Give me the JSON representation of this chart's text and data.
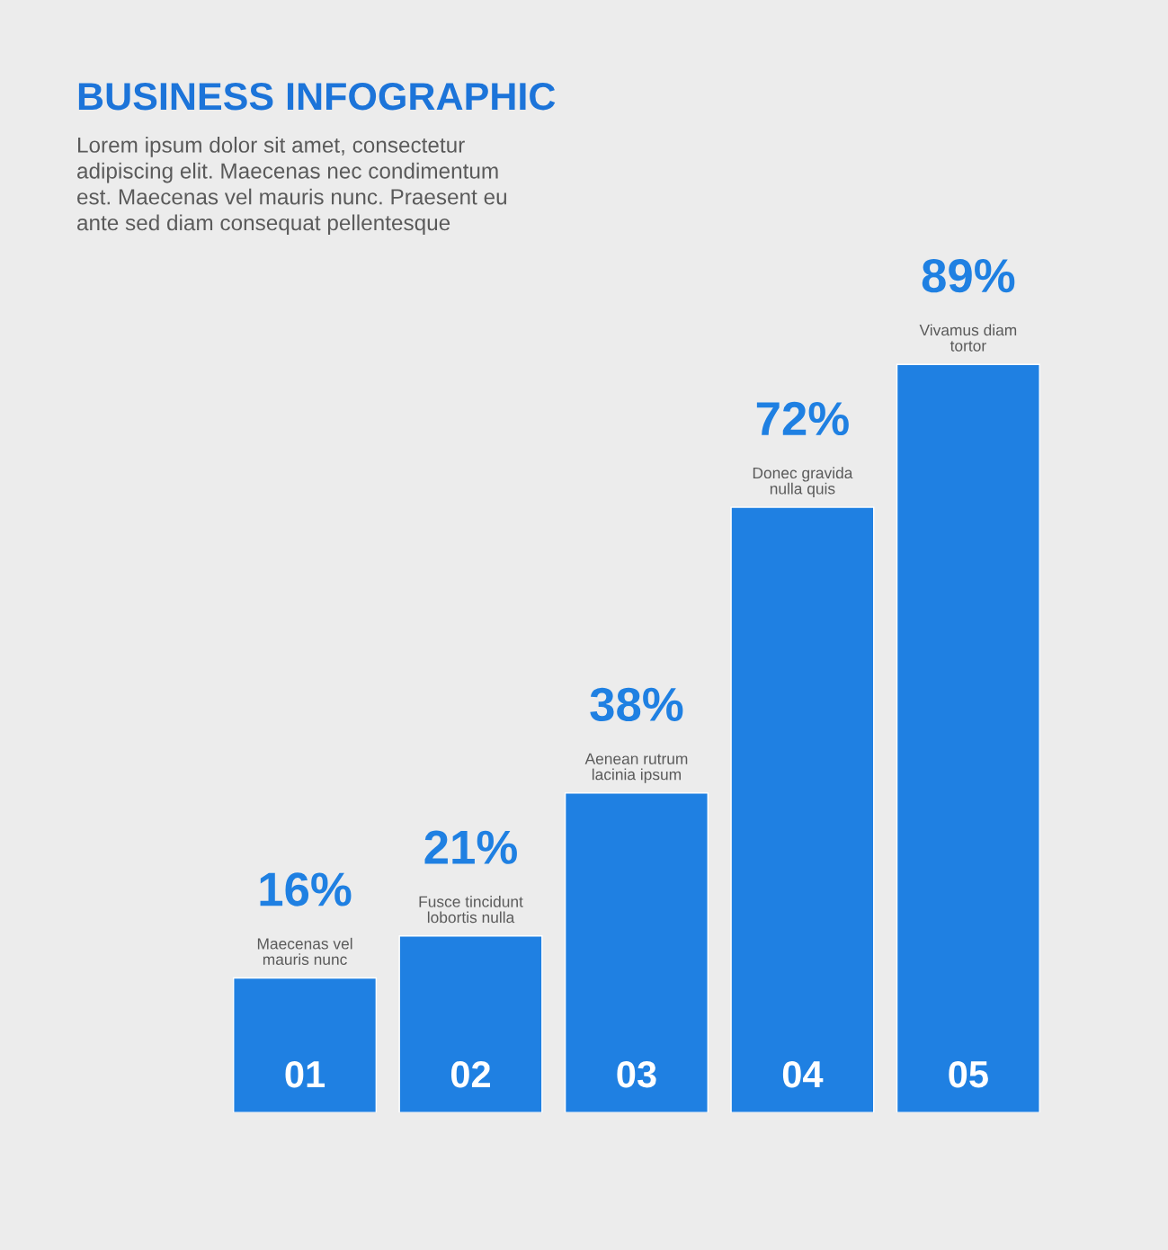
{
  "chart_data": {
    "type": "bar",
    "title": "BUSINESS INFOGRAPHIC",
    "subtitle": "Lorem ipsum dolor sit amet, consectetur\nadipiscing elit. Maecenas nec condimentum\nest. Maecenas vel mauris nunc. Praesent eu\nante sed diam consequat pellentesque",
    "categories": [
      "01",
      "02",
      "03",
      "04",
      "05"
    ],
    "values": [
      16,
      21,
      38,
      72,
      89
    ],
    "color": "#1f80e2",
    "value_labels": [
      "16%",
      "21%",
      "38%",
      "72%",
      "89%"
    ],
    "annotations": [
      {
        "text": "Maecenas vel\nmauris nunc",
        "x": "01",
        "y": 16
      },
      {
        "text": "Fusce tincidunt\nlobortis nulla",
        "x": "02",
        "y": 21
      },
      {
        "text": "Aenean rutrum\nlacinia ipsum",
        "x": "03",
        "y": 38
      },
      {
        "text": "Donec gravida\nnulla quis",
        "x": "04",
        "y": 72
      },
      {
        "text": "Vivamus diam\ntortor",
        "x": "05",
        "y": 89
      }
    ]
  }
}
